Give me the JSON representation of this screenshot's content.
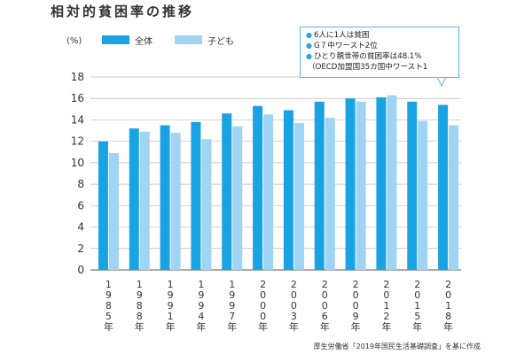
{
  "title": "相対的貧困率の推移",
  "unit_label": "(%)",
  "legend": [
    {
      "label": "全体",
      "color": "#1aa3e3"
    },
    {
      "label": "子ども",
      "color": "#9fd5f2"
    }
  ],
  "callout": {
    "lines": [
      {
        "bullet": "●",
        "text": "6人に1人は貧困"
      },
      {
        "bullet": "●",
        "text": "G７中ワースト2位"
      },
      {
        "bullet": "●",
        "text": "ひとり親世帯の貧困率は48.1%"
      },
      {
        "bullet": "",
        "text": "（OECD加盟国35カ国中ワースト1"
      }
    ]
  },
  "source": "厚生労働省「2019年国民生活基礎調査」を基に作成",
  "chart_data": {
    "type": "bar",
    "title": "相対的貧困率の推移",
    "ylabel": "(%)",
    "xlabel": "",
    "ylim": [
      0,
      18
    ],
    "yticks": [
      0,
      2,
      4,
      6,
      8,
      10,
      12,
      14,
      16,
      18
    ],
    "grid": true,
    "categories": [
      "1985年",
      "1988年",
      "1991年",
      "1994年",
      "1997年",
      "2000年",
      "2003年",
      "2006年",
      "2009年",
      "2012年",
      "2015年",
      "2018年"
    ],
    "category_glyphs": [
      [
        "1",
        "9",
        "8",
        "5",
        "年"
      ],
      [
        "1",
        "9",
        "8",
        "8",
        "年"
      ],
      [
        "1",
        "9",
        "9",
        "1",
        "年"
      ],
      [
        "1",
        "9",
        "9",
        "4",
        "年"
      ],
      [
        "1",
        "9",
        "9",
        "7",
        "年"
      ],
      [
        "2",
        "0",
        "0",
        "0",
        "年"
      ],
      [
        "2",
        "0",
        "0",
        "3",
        "年"
      ],
      [
        "2",
        "0",
        "0",
        "6",
        "年"
      ],
      [
        "2",
        "0",
        "0",
        "9",
        "年"
      ],
      [
        "2",
        "0",
        "1",
        "2",
        "年"
      ],
      [
        "2",
        "0",
        "1",
        "5",
        "年"
      ],
      [
        "2",
        "0",
        "1",
        "8",
        "年"
      ]
    ],
    "series": [
      {
        "name": "全体",
        "color": "#1aa3e3",
        "values": [
          12.0,
          13.2,
          13.5,
          13.8,
          14.6,
          15.3,
          14.9,
          15.7,
          16.0,
          16.1,
          15.7,
          15.4
        ]
      },
      {
        "name": "子ども",
        "color": "#9fd5f2",
        "values": [
          10.9,
          12.9,
          12.8,
          12.2,
          13.4,
          14.5,
          13.7,
          14.2,
          15.7,
          16.3,
          13.9,
          13.5
        ]
      }
    ]
  }
}
